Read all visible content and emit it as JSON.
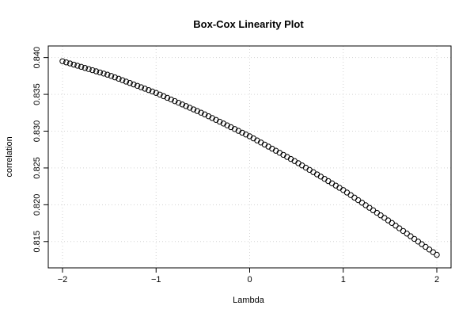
{
  "chart_data": {
    "type": "scatter",
    "title": "Box-Cox Linearity Plot",
    "xlabel": "Lambda",
    "ylabel": "correlation",
    "xlim": [
      -2,
      2
    ],
    "ylim": [
      0.8125,
      0.8405
    ],
    "x_ticks": [
      -2,
      -1,
      0,
      1,
      2
    ],
    "x_tick_labels": [
      "−2",
      "−1",
      "0",
      "1",
      "2"
    ],
    "y_ticks": [
      0.815,
      0.82,
      0.825,
      0.83,
      0.835,
      0.84
    ],
    "y_tick_labels": [
      "0.815",
      "0.820",
      "0.825",
      "0.830",
      "0.835",
      "0.840"
    ],
    "grid": true,
    "marker": "open-circle",
    "series_color": "#000000",
    "curve_points": [
      {
        "x": -2.0,
        "y": 0.8395
      },
      {
        "x": -1.5,
        "y": 0.8376
      },
      {
        "x": -1.0,
        "y": 0.8352
      },
      {
        "x": -0.5,
        "y": 0.8324
      },
      {
        "x": 0.0,
        "y": 0.8293
      },
      {
        "x": 0.5,
        "y": 0.8258
      },
      {
        "x": 1.0,
        "y": 0.822
      },
      {
        "x": 1.5,
        "y": 0.8177
      },
      {
        "x": 2.0,
        "y": 0.8132
      }
    ],
    "n_points": 101
  }
}
